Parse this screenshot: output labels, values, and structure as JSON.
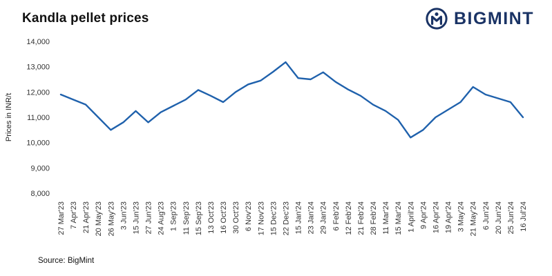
{
  "header": {
    "title": "Kandla pellet prices",
    "brand": "BIGMINT"
  },
  "source": "Source: BigMint",
  "colors": {
    "brand": "#1a3365",
    "line": "#1f61ac",
    "tick_text": "#333333"
  },
  "chart_data": {
    "type": "line",
    "title": "Kandla pellet prices",
    "xlabel": "",
    "ylabel": "Prices in INR/t",
    "ylim": [
      8000,
      14000
    ],
    "ytick_step": 1000,
    "grid": false,
    "legend": "none",
    "line_color": "#1f61ac",
    "categories": [
      "27 Mar'23",
      "7 Apr'23",
      "21 Apr'23",
      "20 May'23",
      "26 May'23",
      "3 Jun'23",
      "15 Jun'23",
      "27 Jun'23",
      "24 Aug'23",
      "1 Sep'23",
      "11 Sep'23",
      "15 Sep'23",
      "13 Oct'23",
      "16 Oct'23",
      "30 Oct'23",
      "6 Nov'23",
      "17 Nov'23",
      "15 Dec'23",
      "22 Dec'23",
      "15 Jan'24",
      "23 Jan'24",
      "29 Jan'24",
      "6 Feb'24",
      "12 Feb'24",
      "21 Feb'24",
      "28 Feb'24",
      "11 Mar'24",
      "15 Mar'24",
      "1 April'24",
      "9 Apr'24",
      "16 Apr'24",
      "19 Apr'24",
      "3 May'24",
      "21 May'24",
      "6 Jun'24",
      "20 Jun'24",
      "25 Jun'24",
      "16 Jul'24"
    ],
    "values": [
      11900,
      11700,
      11500,
      11000,
      10500,
      10800,
      11250,
      10800,
      11200,
      11450,
      11700,
      12080,
      11850,
      11600,
      12000,
      12300,
      12450,
      12800,
      13180,
      12550,
      12500,
      12780,
      12400,
      12100,
      11850,
      11500,
      11250,
      10900,
      10200,
      10500,
      11000,
      11300,
      11600,
      12200,
      11900,
      11750,
      11600,
      11000
    ]
  }
}
